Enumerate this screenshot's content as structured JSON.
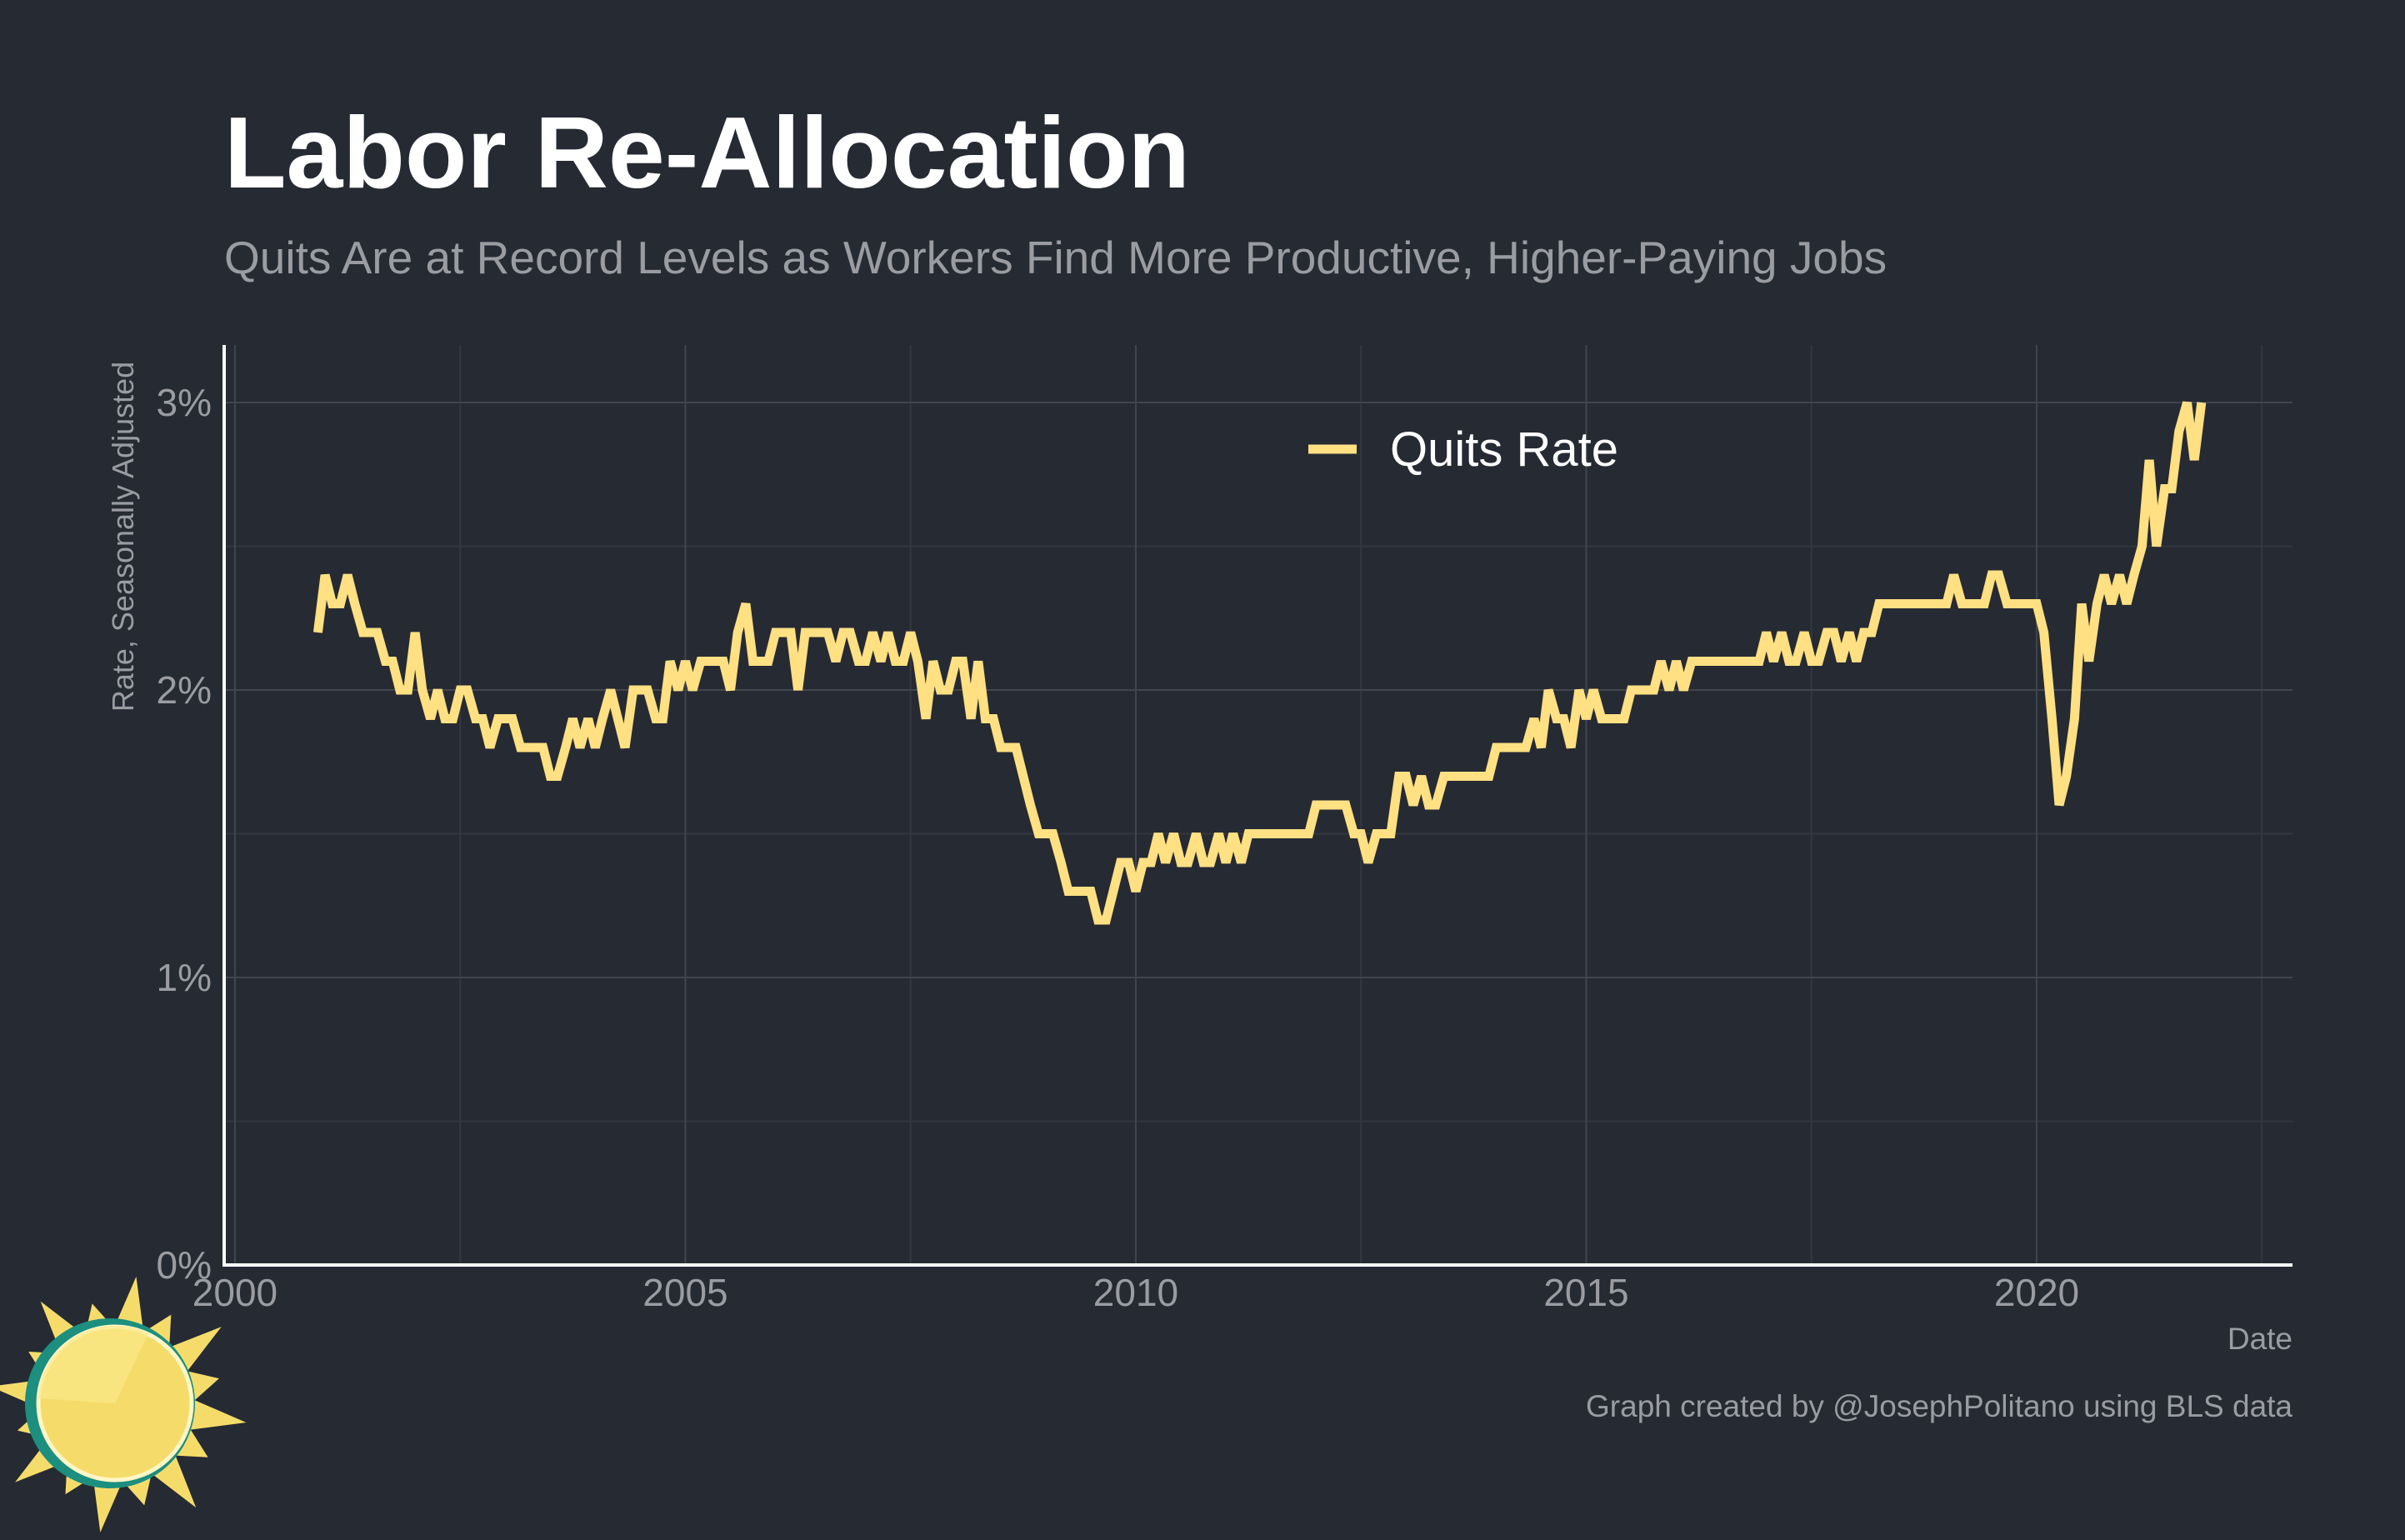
{
  "chart_data": {
    "type": "line",
    "title": "Labor Re-Allocation",
    "subtitle": "Quits Are at Record Levels as Workers Find More Productive, Higher-Paying Jobs",
    "x_label": "Date",
    "y_label": "Rate, Seasonally Adjusted",
    "caption": "Graph created by @JosephPolitano using BLS data",
    "legend": "top",
    "grid": true,
    "xlim": [
      1999.88,
      2022.84
    ],
    "xticks": [
      2000,
      2005,
      2010,
      2015,
      2020
    ],
    "ylim": [
      0,
      3.2
    ],
    "yticks": [
      {
        "value": 0,
        "label": "0%"
      },
      {
        "value": 1,
        "label": "1%"
      },
      {
        "value": 2,
        "label": "2%"
      },
      {
        "value": 3,
        "label": "3%"
      }
    ],
    "x": [
      2000.92,
      2001,
      2001.08,
      2001.17,
      2001.25,
      2001.33,
      2001.42,
      2001.5,
      2001.58,
      2001.67,
      2001.75,
      2001.83,
      2001.92,
      2002,
      2002.08,
      2002.17,
      2002.25,
      2002.33,
      2002.42,
      2002.5,
      2002.58,
      2002.67,
      2002.75,
      2002.83,
      2002.92,
      2003,
      2003.08,
      2003.17,
      2003.25,
      2003.33,
      2003.42,
      2003.5,
      2003.58,
      2003.67,
      2003.75,
      2003.83,
      2003.92,
      2004,
      2004.08,
      2004.17,
      2004.25,
      2004.33,
      2004.42,
      2004.5,
      2004.58,
      2004.67,
      2004.75,
      2004.83,
      2004.92,
      2005,
      2005.08,
      2005.17,
      2005.25,
      2005.33,
      2005.42,
      2005.5,
      2005.58,
      2005.67,
      2005.75,
      2005.83,
      2005.92,
      2006,
      2006.08,
      2006.17,
      2006.25,
      2006.33,
      2006.42,
      2006.5,
      2006.58,
      2006.67,
      2006.75,
      2006.83,
      2006.92,
      2007,
      2007.08,
      2007.17,
      2007.25,
      2007.33,
      2007.42,
      2007.5,
      2007.58,
      2007.67,
      2007.75,
      2007.83,
      2007.92,
      2008,
      2008.08,
      2008.17,
      2008.25,
      2008.33,
      2008.42,
      2008.5,
      2008.58,
      2008.67,
      2008.75,
      2008.83,
      2008.92,
      2009,
      2009.08,
      2009.17,
      2009.25,
      2009.33,
      2009.42,
      2009.5,
      2009.58,
      2009.67,
      2009.75,
      2009.83,
      2009.92,
      2010,
      2010.08,
      2010.17,
      2010.25,
      2010.33,
      2010.42,
      2010.5,
      2010.58,
      2010.67,
      2010.75,
      2010.83,
      2010.92,
      2011,
      2011.08,
      2011.17,
      2011.25,
      2011.33,
      2011.42,
      2011.5,
      2011.58,
      2011.67,
      2011.75,
      2011.83,
      2011.92,
      2012,
      2012.08,
      2012.17,
      2012.25,
      2012.33,
      2012.42,
      2012.5,
      2012.58,
      2012.67,
      2012.75,
      2012.83,
      2012.92,
      2013,
      2013.08,
      2013.17,
      2013.25,
      2013.33,
      2013.42,
      2013.5,
      2013.58,
      2013.67,
      2013.75,
      2013.83,
      2013.92,
      2014,
      2014.08,
      2014.17,
      2014.25,
      2014.33,
      2014.42,
      2014.5,
      2014.58,
      2014.67,
      2014.75,
      2014.83,
      2014.92,
      2015,
      2015.08,
      2015.17,
      2015.25,
      2015.33,
      2015.42,
      2015.5,
      2015.58,
      2015.67,
      2015.75,
      2015.83,
      2015.92,
      2016,
      2016.08,
      2016.17,
      2016.25,
      2016.33,
      2016.42,
      2016.5,
      2016.58,
      2016.67,
      2016.75,
      2016.83,
      2016.92,
      2017,
      2017.08,
      2017.17,
      2017.25,
      2017.33,
      2017.42,
      2017.5,
      2017.58,
      2017.67,
      2017.75,
      2017.83,
      2017.92,
      2018,
      2018.08,
      2018.17,
      2018.25,
      2018.33,
      2018.42,
      2018.5,
      2018.58,
      2018.67,
      2018.75,
      2018.83,
      2018.92,
      2019,
      2019.08,
      2019.17,
      2019.25,
      2019.33,
      2019.42,
      2019.5,
      2019.58,
      2019.67,
      2019.75,
      2019.83,
      2019.92,
      2020,
      2020.08,
      2020.17,
      2020.25,
      2020.33,
      2020.42,
      2020.5,
      2020.58,
      2020.67,
      2020.75,
      2020.83,
      2020.92,
      2021,
      2021.08,
      2021.17,
      2021.25,
      2021.33,
      2021.42,
      2021.5,
      2021.58,
      2021.67,
      2021.75,
      2021.83
    ],
    "series": [
      {
        "name": "Quits Rate",
        "color": "#ffe083",
        "values": [
          2.2,
          2.4,
          2.3,
          2.3,
          2.4,
          2.3,
          2.2,
          2.2,
          2.2,
          2.1,
          2.1,
          2.0,
          2.0,
          2.2,
          2.0,
          1.9,
          2.0,
          1.9,
          1.9,
          2.0,
          2.0,
          1.9,
          1.9,
          1.8,
          1.9,
          1.9,
          1.9,
          1.8,
          1.8,
          1.8,
          1.8,
          1.7,
          1.7,
          1.8,
          1.9,
          1.8,
          1.9,
          1.8,
          1.9,
          2.0,
          1.9,
          1.8,
          2.0,
          2.0,
          2.0,
          1.9,
          1.9,
          2.1,
          2.0,
          2.1,
          2.0,
          2.1,
          2.1,
          2.1,
          2.1,
          2.0,
          2.2,
          2.3,
          2.1,
          2.1,
          2.1,
          2.2,
          2.2,
          2.2,
          2.0,
          2.2,
          2.2,
          2.2,
          2.2,
          2.1,
          2.2,
          2.2,
          2.1,
          2.1,
          2.2,
          2.1,
          2.2,
          2.1,
          2.1,
          2.2,
          2.1,
          1.9,
          2.1,
          2.0,
          2.0,
          2.1,
          2.1,
          1.9,
          2.1,
          1.9,
          1.9,
          1.8,
          1.8,
          1.8,
          1.7,
          1.6,
          1.5,
          1.5,
          1.5,
          1.4,
          1.3,
          1.3,
          1.3,
          1.3,
          1.2,
          1.2,
          1.3,
          1.4,
          1.4,
          1.3,
          1.4,
          1.4,
          1.5,
          1.4,
          1.5,
          1.4,
          1.4,
          1.5,
          1.4,
          1.4,
          1.5,
          1.4,
          1.5,
          1.4,
          1.5,
          1.5,
          1.5,
          1.5,
          1.5,
          1.5,
          1.5,
          1.5,
          1.5,
          1.6,
          1.6,
          1.6,
          1.6,
          1.6,
          1.5,
          1.5,
          1.4,
          1.5,
          1.5,
          1.5,
          1.7,
          1.7,
          1.6,
          1.7,
          1.6,
          1.6,
          1.7,
          1.7,
          1.7,
          1.7,
          1.7,
          1.7,
          1.7,
          1.8,
          1.8,
          1.8,
          1.8,
          1.8,
          1.9,
          1.8,
          2.0,
          1.9,
          1.9,
          1.8,
          2.0,
          1.9,
          2.0,
          1.9,
          1.9,
          1.9,
          1.9,
          2.0,
          2.0,
          2.0,
          2.0,
          2.1,
          2.0,
          2.1,
          2.0,
          2.1,
          2.1,
          2.1,
          2.1,
          2.1,
          2.1,
          2.1,
          2.1,
          2.1,
          2.1,
          2.2,
          2.1,
          2.2,
          2.1,
          2.1,
          2.2,
          2.1,
          2.1,
          2.2,
          2.2,
          2.1,
          2.2,
          2.1,
          2.2,
          2.2,
          2.3,
          2.3,
          2.3,
          2.3,
          2.3,
          2.3,
          2.3,
          2.3,
          2.3,
          2.3,
          2.4,
          2.3,
          2.3,
          2.3,
          2.3,
          2.4,
          2.4,
          2.3,
          2.3,
          2.3,
          2.3,
          2.3,
          2.2,
          1.9,
          1.6,
          1.7,
          1.9,
          2.3,
          2.1,
          2.3,
          2.4,
          2.3,
          2.4,
          2.3,
          2.4,
          2.5,
          2.8,
          2.5,
          2.7,
          2.7,
          2.9,
          3.0,
          2.8,
          3.0
        ]
      }
    ]
  }
}
